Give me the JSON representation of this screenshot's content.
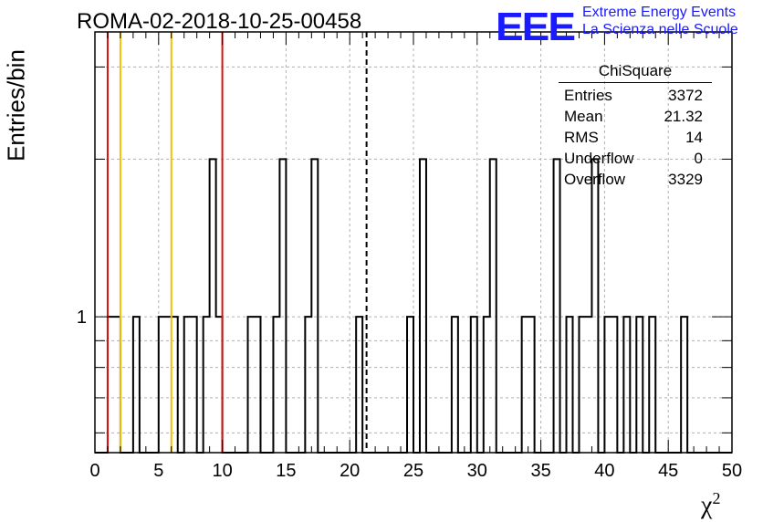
{
  "chart_data": {
    "type": "histogram",
    "title": "ROMA-02-2018-10-25-00458",
    "xlabel": "χ",
    "xlabel_sup": "2",
    "ylabel": "Entries/bin",
    "xlim": [
      0,
      50
    ],
    "ylim_log": [
      0.55,
      3.5
    ],
    "log_y": true,
    "grid": true,
    "x_ticks": [
      0,
      5,
      10,
      15,
      20,
      25,
      30,
      35,
      40,
      45,
      50
    ],
    "x_tick_labels": [
      "0",
      "5",
      "10",
      "15",
      "20",
      "25",
      "30",
      "35",
      "40",
      "45",
      "50"
    ],
    "y_ticks": [
      1
    ],
    "y_tick_labels": [
      "1"
    ],
    "bin_width": 0.5,
    "bins": [
      {
        "x": 1.0,
        "count": 1
      },
      {
        "x": 1.5,
        "count": 1
      },
      {
        "x": 3.0,
        "count": 1
      },
      {
        "x": 5.0,
        "count": 1
      },
      {
        "x": 5.5,
        "count": 1
      },
      {
        "x": 6.0,
        "count": 1
      },
      {
        "x": 7.0,
        "count": 1
      },
      {
        "x": 7.5,
        "count": 1
      },
      {
        "x": 8.5,
        "count": 1
      },
      {
        "x": 9.0,
        "count": 2
      },
      {
        "x": 9.5,
        "count": 1
      },
      {
        "x": 12.0,
        "count": 1
      },
      {
        "x": 12.5,
        "count": 1
      },
      {
        "x": 14.0,
        "count": 1
      },
      {
        "x": 14.5,
        "count": 2
      },
      {
        "x": 16.5,
        "count": 1
      },
      {
        "x": 17.0,
        "count": 2
      },
      {
        "x": 20.5,
        "count": 1
      },
      {
        "x": 24.5,
        "count": 1
      },
      {
        "x": 25.5,
        "count": 2
      },
      {
        "x": 28.0,
        "count": 1
      },
      {
        "x": 29.5,
        "count": 1
      },
      {
        "x": 30.5,
        "count": 1
      },
      {
        "x": 31.0,
        "count": 2
      },
      {
        "x": 33.5,
        "count": 1
      },
      {
        "x": 34.0,
        "count": 1
      },
      {
        "x": 36.0,
        "count": 2
      },
      {
        "x": 37.0,
        "count": 1
      },
      {
        "x": 38.0,
        "count": 1
      },
      {
        "x": 38.5,
        "count": 1
      },
      {
        "x": 39.0,
        "count": 2
      },
      {
        "x": 40.0,
        "count": 1
      },
      {
        "x": 40.5,
        "count": 1
      },
      {
        "x": 41.5,
        "count": 1
      },
      {
        "x": 42.5,
        "count": 1
      },
      {
        "x": 43.5,
        "count": 1
      },
      {
        "x": 46.0,
        "count": 1
      }
    ],
    "vertical_lines": [
      {
        "x": 1.0,
        "color": "#dd1111",
        "style": "solid"
      },
      {
        "x": 10.0,
        "color": "#dd1111",
        "style": "solid"
      },
      {
        "x": 2.0,
        "color": "#f2c200",
        "style": "solid"
      },
      {
        "x": 6.0,
        "color": "#f2c200",
        "style": "solid"
      },
      {
        "x": 21.32,
        "color": "#000000",
        "style": "dashed"
      }
    ]
  },
  "stats_box": {
    "title": "ChiSquare",
    "rows": [
      {
        "label": "Entries",
        "value": "3372"
      },
      {
        "label": "Mean",
        "value": "21.32"
      },
      {
        "label": "RMS",
        "value": "14"
      },
      {
        "label": "Underflow",
        "value": "0"
      },
      {
        "label": "Overflow",
        "value": "3329"
      }
    ]
  },
  "logo": {
    "mark": "EEE",
    "line1": "Extreme Energy Events",
    "line2": "La Scienza nelle Scuole",
    "color": "#1a1aff"
  }
}
